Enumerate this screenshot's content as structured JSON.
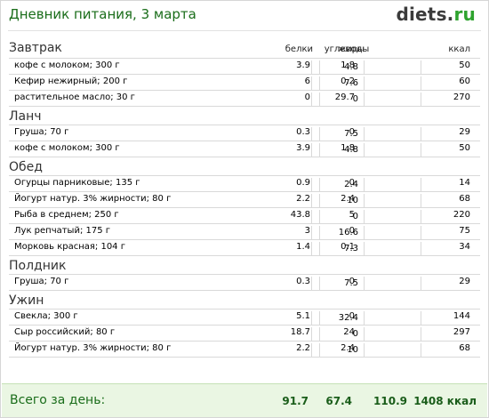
{
  "header": {
    "title": "Дневник питания, 3 марта",
    "logo_main": "diets",
    "logo_dot": ".",
    "logo_tld": "ru"
  },
  "columns": {
    "protein": "белки",
    "fat": "жиры",
    "carbs": "углеводы",
    "kcal": "ккал"
  },
  "meals": [
    {
      "title": "Завтрак",
      "items": [
        {
          "name": "кофе с молоком; 300 г",
          "protein": "3.9",
          "fat": "1.8",
          "carbs": "4.8",
          "kcal": "50"
        },
        {
          "name": "Кефир нежирный; 200 г",
          "protein": "6",
          "fat": "0.2",
          "carbs": "7.6",
          "kcal": "60"
        },
        {
          "name": "растительное масло; 30 г",
          "protein": "0",
          "fat": "29.7",
          "carbs": "0",
          "kcal": "270"
        }
      ]
    },
    {
      "title": "Ланч",
      "items": [
        {
          "name": "Груша; 70 г",
          "protein": "0.3",
          "fat": "0",
          "carbs": "7.5",
          "kcal": "29"
        },
        {
          "name": "кофе с молоком; 300 г",
          "protein": "3.9",
          "fat": "1.8",
          "carbs": "4.8",
          "kcal": "50"
        }
      ]
    },
    {
      "title": "Обед",
      "items": [
        {
          "name": "Огурцы парниковые; 135 г",
          "protein": "0.9",
          "fat": "0",
          "carbs": "2.4",
          "kcal": "14"
        },
        {
          "name": "Йогурт натур. 3% жирности; 80 г",
          "protein": "2.2",
          "fat": "2.4",
          "carbs": "10",
          "kcal": "68"
        },
        {
          "name": "Рыба в среднем; 250 г",
          "protein": "43.8",
          "fat": "5",
          "carbs": "0",
          "kcal": "220"
        },
        {
          "name": "Лук репчатый; 175 г",
          "protein": "3",
          "fat": "0",
          "carbs": "16.6",
          "kcal": "75"
        },
        {
          "name": "Морковь красная; 104 г",
          "protein": "1.4",
          "fat": "0.1",
          "carbs": "7.3",
          "kcal": "34"
        }
      ]
    },
    {
      "title": "Полдник",
      "items": [
        {
          "name": "Груша; 70 г",
          "protein": "0.3",
          "fat": "0",
          "carbs": "7.5",
          "kcal": "29"
        }
      ]
    },
    {
      "title": "Ужин",
      "items": [
        {
          "name": "Свекла; 300 г",
          "protein": "5.1",
          "fat": "0",
          "carbs": "32.4",
          "kcal": "144"
        },
        {
          "name": "Сыр российский; 80 г",
          "protein": "18.7",
          "fat": "24",
          "carbs": "0",
          "kcal": "297"
        },
        {
          "name": "Йогурт натур. 3% жирности; 80 г",
          "protein": "2.2",
          "fat": "2.4",
          "carbs": "10",
          "kcal": "68"
        }
      ]
    }
  ],
  "totals": {
    "label": "Всего за день:",
    "protein": "91.7",
    "fat": "67.4",
    "carbs": "110.9",
    "kcal": "1408 ккал"
  },
  "colors": {
    "title_green": "#1a6d1a",
    "logo_tld_green": "#2ea32e",
    "totals_bg": "#eaf6e3"
  }
}
